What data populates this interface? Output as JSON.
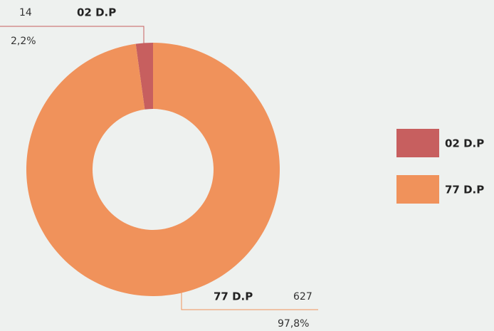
{
  "chart_data": {
    "type": "donut",
    "categories": [
      "02 D.P",
      "77 D.P"
    ],
    "values": [
      14,
      627
    ],
    "percentages": [
      2.2,
      97.8
    ],
    "percentage_labels": [
      "2,2%",
      "97,8%"
    ],
    "colors": [
      "#c75f5f",
      "#f0925b"
    ],
    "legend": "right"
  }
}
